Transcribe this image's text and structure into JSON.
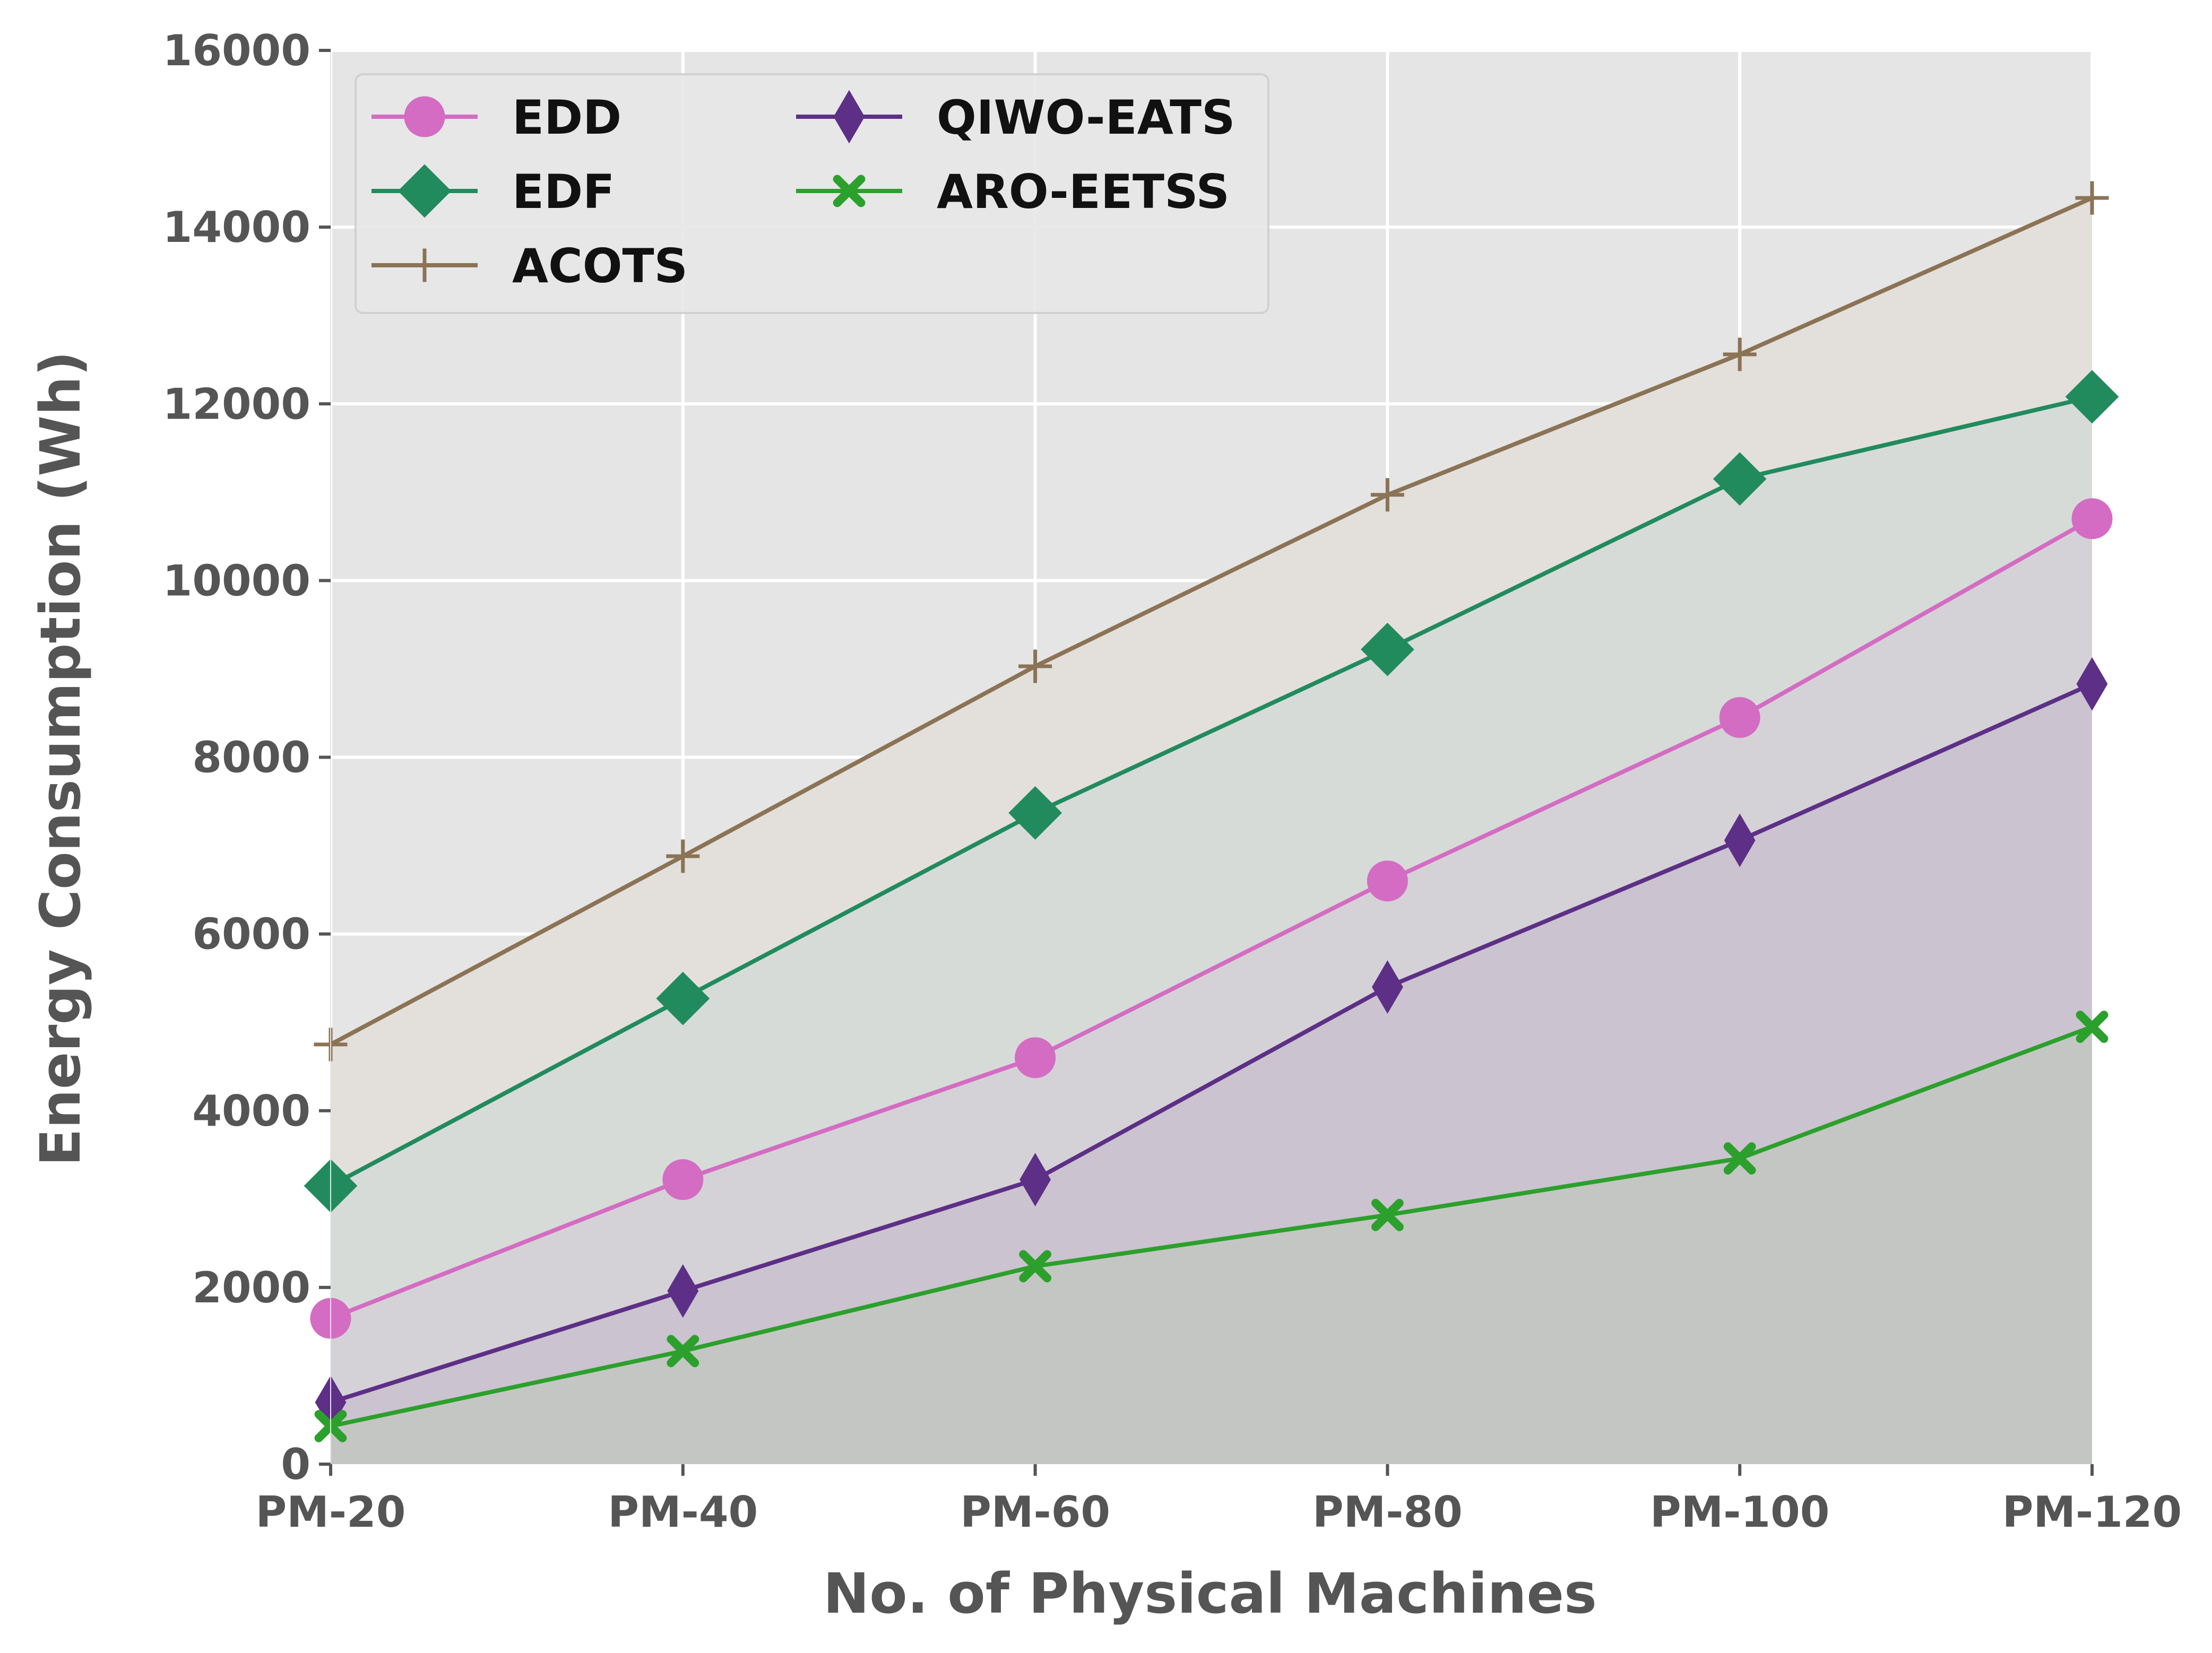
{
  "chart_data": {
    "type": "line",
    "title": "",
    "xlabel": "No. of Physical Machines",
    "ylabel": "Energy Consumption (Wh)",
    "categories": [
      "PM-20",
      "PM-40",
      "PM-60",
      "PM-80",
      "PM-100",
      "PM-120"
    ],
    "ylim": [
      0,
      16000
    ],
    "yticks": [
      0,
      2000,
      4000,
      6000,
      8000,
      10000,
      12000,
      14000,
      16000
    ],
    "grid": true,
    "legend_position": "top-left",
    "series": [
      {
        "name": "EDD",
        "color": "#d46cc3",
        "marker": "circle",
        "values": [
          1650,
          3220,
          4600,
          6600,
          8450,
          10700
        ]
      },
      {
        "name": "EDF",
        "color": "#228b5e",
        "marker": "diamond",
        "values": [
          3150,
          5270,
          7370,
          9220,
          11150,
          12080
        ]
      },
      {
        "name": "ACOTS",
        "color": "#8b7355",
        "marker": "plus",
        "values": [
          4750,
          6880,
          9030,
          10970,
          12560,
          14330
        ]
      },
      {
        "name": "QIWO-EATS",
        "color": "#5d2f86",
        "marker": "thin_diamond",
        "values": [
          700,
          1960,
          3220,
          5400,
          7060,
          8830
        ]
      },
      {
        "name": "ARO-EETSS",
        "color": "#2ca02c",
        "marker": "x",
        "values": [
          430,
          1280,
          2240,
          2820,
          3460,
          4950
        ]
      }
    ]
  }
}
